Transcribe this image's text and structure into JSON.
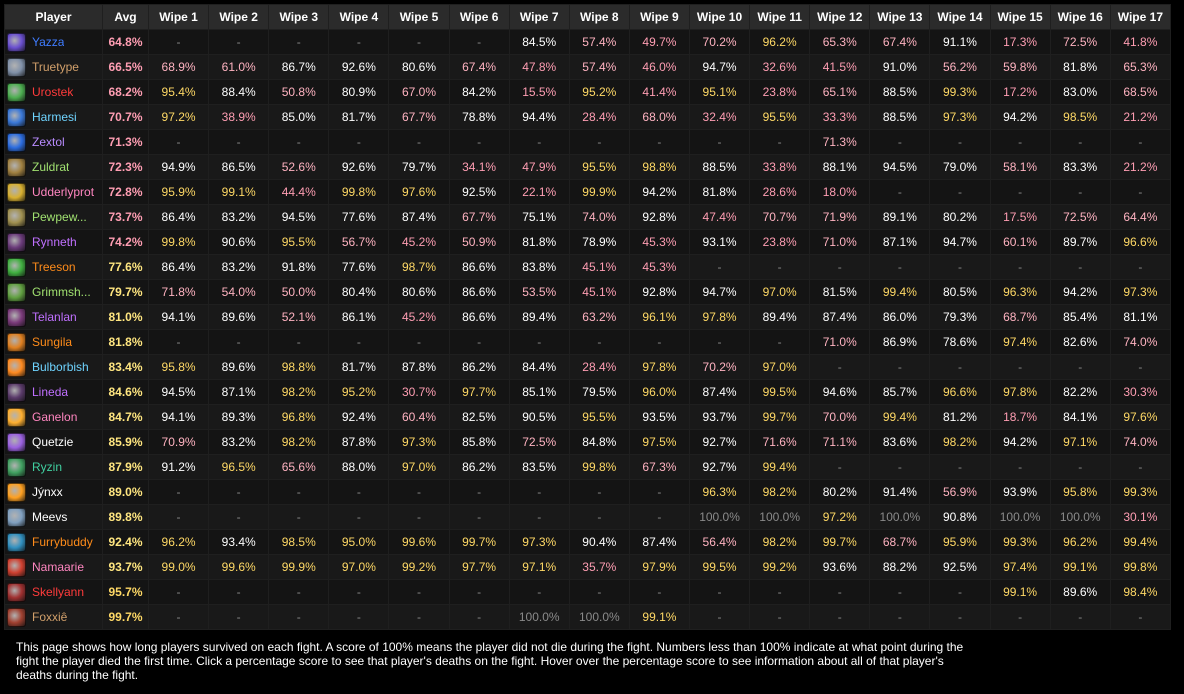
{
  "table": {
    "headers": [
      "Player",
      "Avg",
      "Wipe 1",
      "Wipe 2",
      "Wipe 3",
      "Wipe 4",
      "Wipe 5",
      "Wipe 6",
      "Wipe 7",
      "Wipe 8",
      "Wipe 9",
      "Wipe 10",
      "Wipe 11",
      "Wipe 12",
      "Wipe 13",
      "Wipe 14",
      "Wipe 15",
      "Wipe 16",
      "Wipe 17"
    ],
    "rows": [
      {
        "name": "Yazza",
        "color": "#3f7cff",
        "icon": "mage-icon",
        "iconColor": "#6a4fd0",
        "avg": "64.8%",
        "values": [
          "-",
          "-",
          "-",
          "-",
          "-",
          "-",
          "84.5%",
          "57.4%",
          "49.7%",
          "70.2%",
          "96.2%",
          "65.3%",
          "67.4%",
          "91.1%",
          "17.3%",
          "72.5%",
          "41.8%"
        ]
      },
      {
        "name": "Truetype",
        "color": "#d2a06b",
        "icon": "warrior-icon",
        "iconColor": "#8090a8",
        "avg": "66.5%",
        "values": [
          "68.9%",
          "61.0%",
          "86.7%",
          "92.6%",
          "80.6%",
          "67.4%",
          "47.8%",
          "57.4%",
          "46.0%",
          "94.7%",
          "32.6%",
          "41.5%",
          "91.0%",
          "56.2%",
          "59.8%",
          "81.8%",
          "65.3%"
        ]
      },
      {
        "name": "Urostek",
        "color": "#ff3b3b",
        "icon": "deathknight-icon",
        "iconColor": "#4caf50",
        "avg": "68.2%",
        "values": [
          "95.4%",
          "88.4%",
          "50.8%",
          "80.9%",
          "67.0%",
          "84.2%",
          "15.5%",
          "95.2%",
          "41.4%",
          "95.1%",
          "23.8%",
          "65.1%",
          "88.5%",
          "99.3%",
          "17.2%",
          "83.0%",
          "68.5%"
        ]
      },
      {
        "name": "Harmesi",
        "color": "#6fd4ff",
        "icon": "mage-icon",
        "iconColor": "#3a78d8",
        "avg": "70.7%",
        "values": [
          "97.2%",
          "38.9%",
          "85.0%",
          "81.7%",
          "67.7%",
          "78.8%",
          "94.4%",
          "28.4%",
          "68.0%",
          "32.4%",
          "95.5%",
          "33.3%",
          "88.5%",
          "97.3%",
          "94.2%",
          "98.5%",
          "21.2%"
        ]
      },
      {
        "name": "Zextol",
        "color": "#b98cff",
        "icon": "warlock-icon",
        "iconColor": "#2b6ce0",
        "avg": "71.3%",
        "values": [
          "-",
          "-",
          "-",
          "-",
          "-",
          "-",
          "-",
          "-",
          "-",
          "-",
          "-",
          "71.3%",
          "-",
          "-",
          "-",
          "-",
          "-"
        ]
      },
      {
        "name": "Zuldrat",
        "color": "#a0e070",
        "icon": "hunter-icon",
        "iconColor": "#a08040",
        "avg": "72.3%",
        "values": [
          "94.9%",
          "86.5%",
          "52.6%",
          "92.6%",
          "79.7%",
          "34.1%",
          "47.9%",
          "95.5%",
          "98.8%",
          "88.5%",
          "33.8%",
          "88.1%",
          "94.5%",
          "79.0%",
          "58.1%",
          "83.3%",
          "21.2%"
        ]
      },
      {
        "name": "Udderlyprot",
        "color": "#ff86c0",
        "icon": "paladin-icon",
        "iconColor": "#d8b030",
        "avg": "72.8%",
        "values": [
          "95.9%",
          "99.1%",
          "44.4%",
          "99.8%",
          "97.6%",
          "92.5%",
          "22.1%",
          "99.9%",
          "94.2%",
          "81.8%",
          "28.6%",
          "18.0%",
          "-",
          "-",
          "-",
          "-",
          "-"
        ]
      },
      {
        "name": "Pewpew...",
        "color": "#a0e070",
        "icon": "hunter-icon",
        "iconColor": "#a09050",
        "avg": "73.7%",
        "values": [
          "86.4%",
          "83.2%",
          "94.5%",
          "77.6%",
          "87.4%",
          "67.7%",
          "75.1%",
          "74.0%",
          "92.8%",
          "47.4%",
          "70.7%",
          "71.9%",
          "89.1%",
          "80.2%",
          "17.5%",
          "72.5%",
          "64.4%"
        ]
      },
      {
        "name": "Rynneth",
        "color": "#c070ff",
        "icon": "demonhunter-icon",
        "iconColor": "#6a3a7a",
        "avg": "74.2%",
        "values": [
          "99.8%",
          "90.6%",
          "95.5%",
          "56.7%",
          "45.2%",
          "50.9%",
          "81.8%",
          "78.9%",
          "45.3%",
          "93.1%",
          "23.8%",
          "71.0%",
          "87.1%",
          "94.7%",
          "60.1%",
          "89.7%",
          "96.6%"
        ]
      },
      {
        "name": "Treeson",
        "color": "#ff8c1a",
        "icon": "druid-icon",
        "iconColor": "#40b040",
        "avg": "77.6%",
        "values": [
          "86.4%",
          "83.2%",
          "91.8%",
          "77.6%",
          "98.7%",
          "86.6%",
          "83.8%",
          "45.1%",
          "45.3%",
          "-",
          "-",
          "-",
          "-",
          "-",
          "-",
          "-",
          "-"
        ]
      },
      {
        "name": "Grimmsh...",
        "color": "#a0e070",
        "icon": "hunter-icon",
        "iconColor": "#60a040",
        "avg": "79.7%",
        "values": [
          "71.8%",
          "54.0%",
          "50.0%",
          "80.4%",
          "80.6%",
          "86.6%",
          "53.5%",
          "45.1%",
          "92.8%",
          "94.7%",
          "97.0%",
          "81.5%",
          "99.4%",
          "80.5%",
          "96.3%",
          "94.2%",
          "97.3%"
        ]
      },
      {
        "name": "Telanlan",
        "color": "#c070ff",
        "icon": "demonhunter-icon",
        "iconColor": "#7a3a7a",
        "avg": "81.0%",
        "values": [
          "94.1%",
          "89.6%",
          "52.1%",
          "86.1%",
          "45.2%",
          "86.6%",
          "89.4%",
          "63.2%",
          "96.1%",
          "97.8%",
          "89.4%",
          "87.4%",
          "86.0%",
          "79.3%",
          "68.7%",
          "85.4%",
          "81.1%"
        ]
      },
      {
        "name": "Sungila",
        "color": "#ff8c1a",
        "icon": "druid-icon",
        "iconColor": "#e08020",
        "avg": "81.8%",
        "values": [
          "-",
          "-",
          "-",
          "-",
          "-",
          "-",
          "-",
          "-",
          "-",
          "-",
          "-",
          "71.0%",
          "86.9%",
          "78.6%",
          "97.4%",
          "82.6%",
          "74.0%"
        ]
      },
      {
        "name": "Bulborbish",
        "color": "#6fd4ff",
        "icon": "mage-icon",
        "iconColor": "#ff8a20",
        "avg": "83.4%",
        "values": [
          "95.8%",
          "89.6%",
          "98.8%",
          "81.7%",
          "87.8%",
          "86.2%",
          "84.4%",
          "28.4%",
          "97.8%",
          "70.2%",
          "97.0%",
          "-",
          "-",
          "-",
          "-",
          "-",
          "-"
        ]
      },
      {
        "name": "Lineda",
        "color": "#c070ff",
        "icon": "demonhunter-icon",
        "iconColor": "#5a3a6a",
        "avg": "84.6%",
        "values": [
          "94.5%",
          "87.1%",
          "98.2%",
          "95.2%",
          "30.7%",
          "97.7%",
          "85.1%",
          "79.5%",
          "96.0%",
          "87.4%",
          "99.5%",
          "94.6%",
          "85.7%",
          "96.6%",
          "97.8%",
          "82.2%",
          "30.3%"
        ]
      },
      {
        "name": "Ganelon",
        "color": "#ff86c0",
        "icon": "paladin-icon",
        "iconColor": "#ffb030",
        "avg": "84.7%",
        "values": [
          "94.1%",
          "89.3%",
          "96.8%",
          "92.4%",
          "60.4%",
          "82.5%",
          "90.5%",
          "95.5%",
          "93.5%",
          "93.7%",
          "99.7%",
          "70.0%",
          "99.4%",
          "81.2%",
          "18.7%",
          "84.1%",
          "97.6%"
        ]
      },
      {
        "name": "Quetzie",
        "color": "#ffffff",
        "icon": "priest-icon",
        "iconColor": "#9a60e0",
        "avg": "85.9%",
        "values": [
          "70.9%",
          "83.2%",
          "98.2%",
          "87.8%",
          "97.3%",
          "85.8%",
          "72.5%",
          "84.8%",
          "97.5%",
          "92.7%",
          "71.6%",
          "71.1%",
          "83.6%",
          "98.2%",
          "94.2%",
          "97.1%",
          "74.0%"
        ]
      },
      {
        "name": "Ryzin",
        "color": "#40d0a0",
        "icon": "monk-icon",
        "iconColor": "#40a060",
        "avg": "87.9%",
        "values": [
          "91.2%",
          "96.5%",
          "65.6%",
          "88.0%",
          "97.0%",
          "86.2%",
          "83.5%",
          "99.8%",
          "67.3%",
          "92.7%",
          "99.4%",
          "-",
          "-",
          "-",
          "-",
          "-",
          "-"
        ]
      },
      {
        "name": "Jýnxx",
        "color": "#ffffff",
        "icon": "priest-icon",
        "iconColor": "#ffa020",
        "avg": "89.0%",
        "values": [
          "-",
          "-",
          "-",
          "-",
          "-",
          "-",
          "-",
          "-",
          "-",
          "96.3%",
          "98.2%",
          "80.2%",
          "91.4%",
          "56.9%",
          "93.9%",
          "95.8%",
          "99.3%"
        ]
      },
      {
        "name": "Meevs",
        "color": "#ffffff",
        "icon": "priest-icon",
        "iconColor": "#80a0c0",
        "avg": "89.8%",
        "values": [
          "-",
          "-",
          "-",
          "-",
          "-",
          "-",
          "-",
          "-",
          "-",
          "100.0%",
          "100.0%",
          "97.2%",
          "100.0%",
          "90.8%",
          "100.0%",
          "100.0%",
          "30.1%"
        ]
      },
      {
        "name": "Furrybuddy",
        "color": "#ff8c1a",
        "icon": "druid-icon",
        "iconColor": "#3090c0",
        "avg": "92.4%",
        "values": [
          "96.2%",
          "93.4%",
          "98.5%",
          "95.0%",
          "99.6%",
          "99.7%",
          "97.3%",
          "90.4%",
          "87.4%",
          "56.4%",
          "98.2%",
          "99.7%",
          "68.7%",
          "95.9%",
          "99.3%",
          "96.2%",
          "99.4%"
        ]
      },
      {
        "name": "Namaarie",
        "color": "#ff86c0",
        "icon": "paladin-icon",
        "iconColor": "#d04030",
        "avg": "93.7%",
        "values": [
          "99.0%",
          "99.6%",
          "99.9%",
          "97.0%",
          "99.2%",
          "97.7%",
          "97.1%",
          "35.7%",
          "97.9%",
          "99.5%",
          "99.2%",
          "93.6%",
          "88.2%",
          "92.5%",
          "97.4%",
          "99.1%",
          "99.8%"
        ]
      },
      {
        "name": "Skellyann",
        "color": "#ff3b3b",
        "icon": "deathknight-icon",
        "iconColor": "#a03030",
        "avg": "95.7%",
        "values": [
          "-",
          "-",
          "-",
          "-",
          "-",
          "-",
          "-",
          "-",
          "-",
          "-",
          "-",
          "-",
          "-",
          "-",
          "99.1%",
          "89.6%",
          "98.4%"
        ]
      },
      {
        "name": "Foxxiê",
        "color": "#d2a06b",
        "icon": "warrior-icon",
        "iconColor": "#a04030",
        "avg": "99.7%",
        "values": [
          "-",
          "-",
          "-",
          "-",
          "-",
          "-",
          "100.0%",
          "100.0%",
          "99.1%",
          "-",
          "-",
          "-",
          "-",
          "-",
          "-",
          "-",
          "-"
        ]
      }
    ]
  },
  "footer": {
    "text": "This page shows how long players survived on each fight. A score of 100% means the player did not die during the fight. Numbers less than 100% indicate at what point during the fight the player died the first time. Click a percentage score to see that player's deaths on the fight. Hover over the percentage score to see information about all of that player's deaths during the fight."
  }
}
